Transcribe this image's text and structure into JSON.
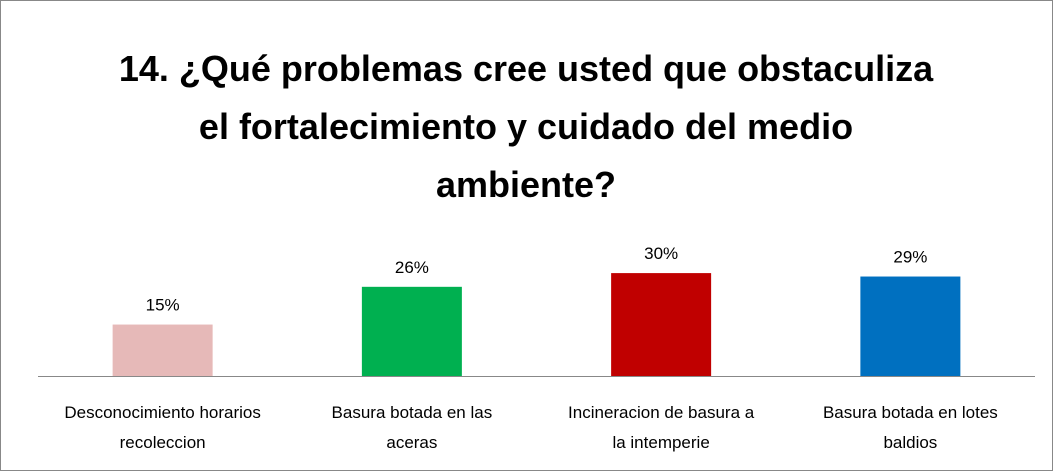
{
  "chart_data": {
    "type": "bar",
    "title": "14. ¿Qué problemas cree usted que obstaculiza el fortalecimiento y cuidado del medio ambiente?",
    "categories": [
      "Desconocimiento horarios recoleccion",
      "Basura botada en las aceras",
      "Incineracion de basura a la intemperie",
      "Basura botada en lotes baldios"
    ],
    "values": [
      15,
      26,
      30,
      29
    ],
    "value_labels": [
      "15%",
      "26%",
      "30%",
      "29%"
    ],
    "colors": [
      "#e6b9b8",
      "#00b050",
      "#c00000",
      "#0070c0"
    ]
  }
}
